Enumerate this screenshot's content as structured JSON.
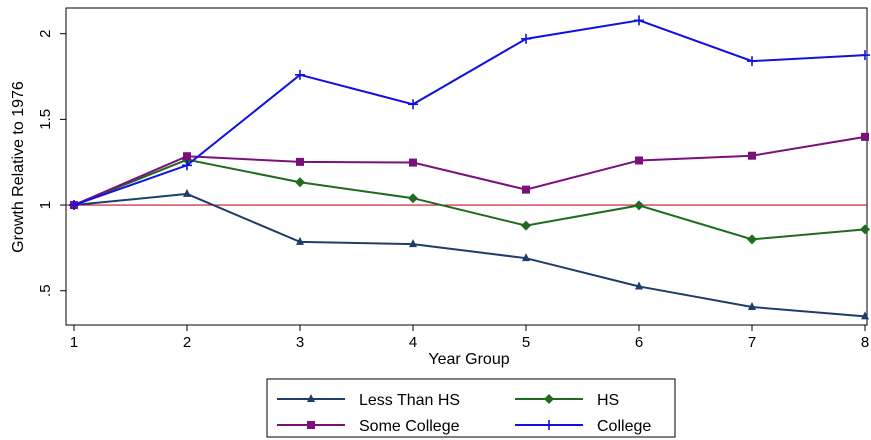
{
  "chart_data": {
    "type": "line",
    "xlabel": "Year Group",
    "ylabel": "Growth Relative to 1976",
    "x": [
      1,
      2,
      3,
      4,
      5,
      6,
      7,
      8
    ],
    "xlim": [
      1,
      8
    ],
    "ylim": [
      0.3,
      2.15
    ],
    "yticks": [
      0.5,
      1,
      1.5,
      2
    ],
    "ytick_labels": [
      ".5",
      "1",
      "1.5",
      "2"
    ],
    "xtick_labels": [
      "1",
      "2",
      "3",
      "4",
      "5",
      "6",
      "7",
      "8"
    ],
    "reference_line": {
      "y": 1,
      "color": "#c8102e"
    },
    "grid": false,
    "legend_position": "bottom",
    "series": [
      {
        "name": "Less Than HS",
        "color": "#1f3d6b",
        "marker": "triangle",
        "values": [
          1.0,
          1.065,
          0.785,
          0.772,
          0.69,
          0.525,
          0.405,
          0.35
        ]
      },
      {
        "name": "HS",
        "color": "#1f6b1f",
        "marker": "diamond",
        "values": [
          1.0,
          1.265,
          1.133,
          1.04,
          0.88,
          0.998,
          0.8,
          0.858
        ]
      },
      {
        "name": "Some College",
        "color": "#7b0f7b",
        "marker": "square",
        "values": [
          1.0,
          1.285,
          1.252,
          1.248,
          1.09,
          1.26,
          1.288,
          1.398
        ]
      },
      {
        "name": "College",
        "color": "#1010e0",
        "marker": "plus",
        "values": [
          1.0,
          1.232,
          1.76,
          1.588,
          1.97,
          2.078,
          1.84,
          1.875
        ]
      }
    ]
  }
}
